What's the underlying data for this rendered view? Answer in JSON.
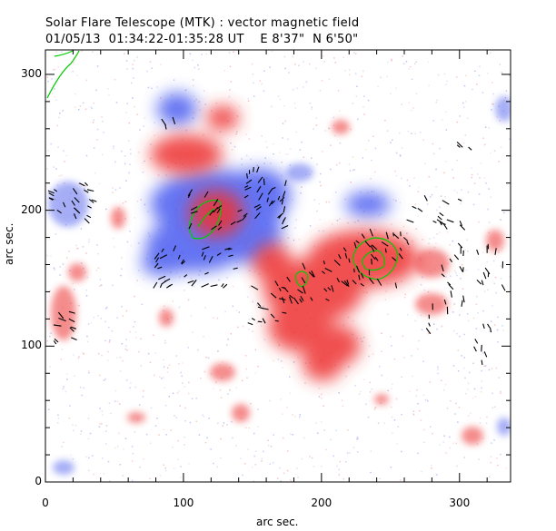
{
  "title": {
    "line1": "Solar Flare Telescope (MTK) : vector magnetic field",
    "line2": "01/05/13  01:34:22-01:35:28 UT    E 8'37\"  N 6'50\""
  },
  "axes": {
    "xlabel": "arc sec.",
    "ylabel": "arc sec.",
    "xlim": [
      0,
      337
    ],
    "ylim": [
      0,
      318
    ],
    "xticks": [
      0,
      100,
      200,
      300
    ],
    "yticks": [
      0,
      100,
      200,
      300
    ]
  },
  "colors": {
    "positive_polarity": "#ee3333",
    "negative_polarity": "#3344ee",
    "neutral_line": "#00cc00",
    "vectors": "#000000",
    "frame": "#000000"
  }
}
